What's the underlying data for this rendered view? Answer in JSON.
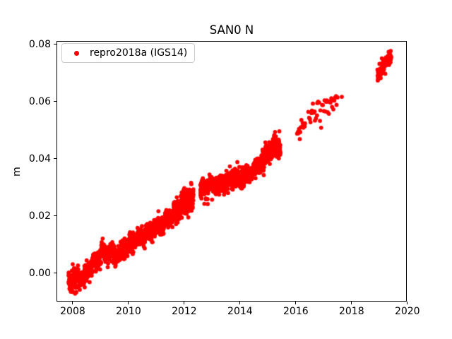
{
  "colors": {
    "marker": "#ff0000",
    "text": "#000000",
    "axes": "#000000",
    "legend_border": "#cccccc",
    "background": "#ffffff"
  },
  "chart_data": {
    "type": "scatter",
    "title": "SAN0 N",
    "xlabel": "",
    "ylabel": "m",
    "grid": false,
    "xlim": [
      2007.418,
      2019.98
    ],
    "ylim": [
      -0.00988,
      0.08123
    ],
    "xticks": {
      "values": [
        2008,
        2010,
        2012,
        2014,
        2016,
        2018,
        2020
      ],
      "labels": [
        "2008",
        "2010",
        "2012",
        "2014",
        "2016",
        "2018",
        "2020"
      ]
    },
    "yticks": {
      "values": [
        0.0,
        0.02,
        0.04,
        0.06,
        0.08
      ],
      "labels": [
        "0.00",
        "0.02",
        "0.04",
        "0.06",
        "0.08"
      ]
    },
    "legend": {
      "label": "repro2018a (IGS14)",
      "position": "upper-left",
      "marker_color": "#ff0000",
      "border_color": "#cccccc"
    },
    "series": [
      {
        "name": "repro2018a (IGS14)",
        "color": "#ff0000",
        "marker": "circle",
        "marker_radius_px": 2.9,
        "seed": 9,
        "trend_knots": [
          [
            2007.85,
            -0.003
          ],
          [
            2008.1,
            -0.0022
          ],
          [
            2008.4,
            -0.0012
          ],
          [
            2008.7,
            0.0035
          ],
          [
            2009.0,
            0.0068
          ],
          [
            2009.3,
            0.0075
          ],
          [
            2009.55,
            0.006
          ],
          [
            2009.8,
            0.0078
          ],
          [
            2010.05,
            0.01
          ],
          [
            2010.4,
            0.0125
          ],
          [
            2010.8,
            0.015
          ],
          [
            2011.1,
            0.017
          ],
          [
            2011.4,
            0.019
          ],
          [
            2011.7,
            0.0215
          ],
          [
            2012.0,
            0.025
          ],
          [
            2012.33,
            0.027
          ],
          [
            2012.58,
            0.029
          ],
          [
            2012.9,
            0.0307
          ],
          [
            2013.2,
            0.031
          ],
          [
            2013.5,
            0.032
          ],
          [
            2013.8,
            0.0332
          ],
          [
            2014.1,
            0.0336
          ],
          [
            2014.4,
            0.0352
          ],
          [
            2014.7,
            0.0378
          ],
          [
            2015.0,
            0.0418
          ],
          [
            2015.25,
            0.045
          ],
          [
            2015.45,
            0.0443
          ],
          [
            2016.05,
            0.0496
          ],
          [
            2016.35,
            0.0526
          ],
          [
            2016.45,
            0.0538
          ],
          [
            2016.9,
            0.0574
          ],
          [
            2017.2,
            0.0588
          ],
          [
            2017.5,
            0.0598
          ],
          [
            2018.93,
            0.0692
          ],
          [
            2019.2,
            0.0732
          ],
          [
            2019.42,
            0.0757
          ]
        ],
        "segments": [
          {
            "start": 2007.85,
            "end": 2015.45,
            "step_days": 1.0,
            "noise_m": 0.0014
          },
          {
            "start": 2016.05,
            "end": 2016.35,
            "step_days": 8.0,
            "noise_m": 0.0012
          },
          {
            "start": 2016.45,
            "end": 2017.5,
            "step_days": 10.0,
            "noise_m": 0.0019
          },
          {
            "start": 2018.93,
            "end": 2019.42,
            "step_days": 1.5,
            "noise_m": 0.0012
          }
        ],
        "noise_boost_intervals": [
          [
            2007.85,
            2008.2,
            0.002
          ],
          [
            2011.7,
            2012.33,
            0.0023
          ],
          [
            2014.8,
            2015.35,
            0.0017
          ]
        ],
        "gaps": [
          [
            2012.33,
            2012.575
          ]
        ],
        "outliers": [
          [
            2008.0,
            0.0032
          ],
          [
            2012.72,
            0.0243
          ],
          [
            2012.84,
            0.0242
          ],
          [
            2013.25,
            0.0275
          ],
          [
            2013.42,
            0.0287
          ],
          [
            2013.57,
            0.0281
          ],
          [
            2017.65,
            0.0617
          ]
        ]
      }
    ]
  }
}
